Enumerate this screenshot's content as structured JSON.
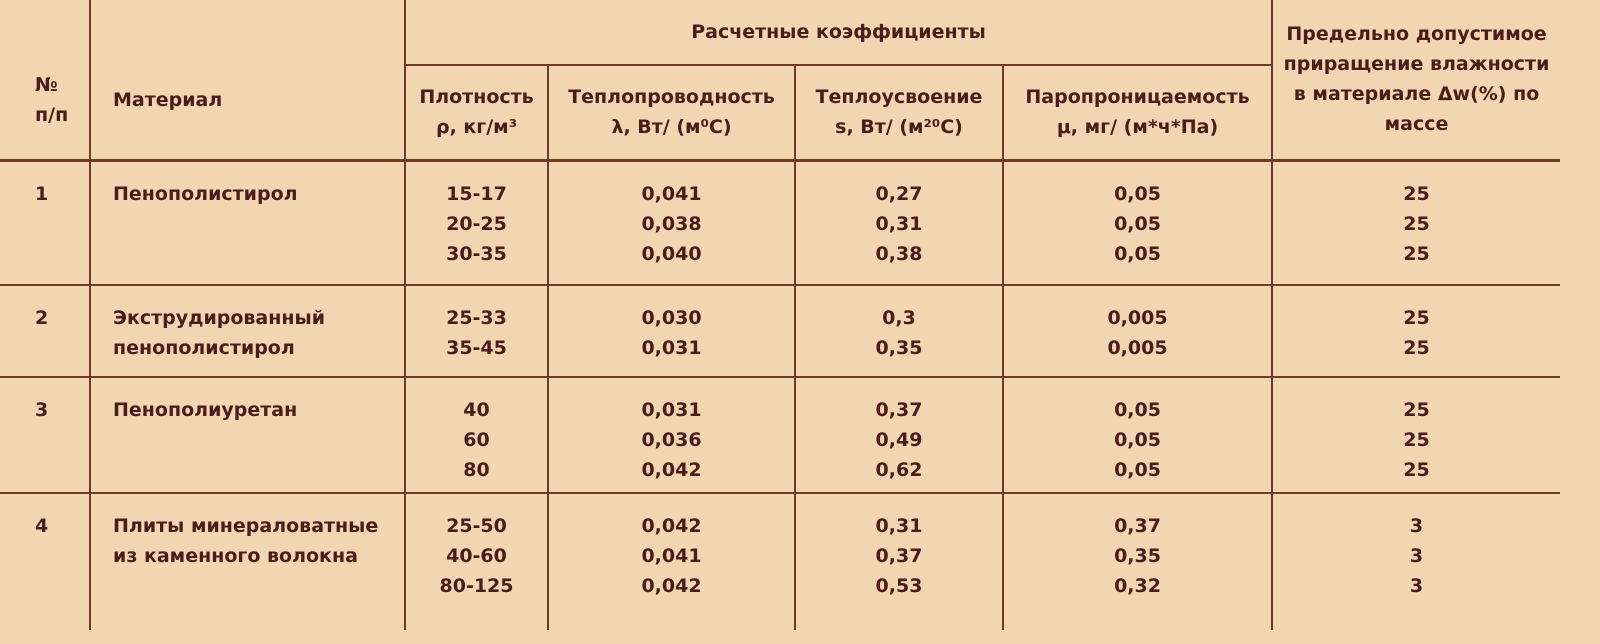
{
  "header": {
    "number": [
      "№",
      "п/п"
    ],
    "material": [
      "Материал"
    ],
    "group": [
      "Расчетные коэффициенты"
    ],
    "columns": [
      [
        "Плотность",
        "ρ, кг/м³"
      ],
      [
        "Теплопроводность",
        "λ, Вт/ (м⁰С)"
      ],
      [
        "Теплоусвоение",
        "s, Вт/ (м²⁰С)"
      ],
      [
        "Паропроницаемость",
        "μ, мг/ (м*ч*Па)"
      ]
    ],
    "limit": [
      "Предельно допустимое",
      "приращение влажности",
      "в материале Δw(%) по",
      "массе"
    ]
  },
  "rows": [
    {
      "number": "1",
      "material": [
        "Пенополистирол"
      ],
      "values": [
        [
          "15-17",
          "20-25",
          "30-35"
        ],
        [
          "0,041",
          "0,038",
          "0,040"
        ],
        [
          "0,27",
          "0,31",
          "0,38"
        ],
        [
          "0,05",
          "0,05",
          "0,05"
        ],
        [
          "25",
          "25",
          "25"
        ]
      ]
    },
    {
      "number": "2",
      "material": [
        "Экструдированный",
        "пенополистирол"
      ],
      "values": [
        [
          "25-33",
          "35-45"
        ],
        [
          "0,030",
          "0,031"
        ],
        [
          "0,3",
          "0,35"
        ],
        [
          "0,005",
          "0,005"
        ],
        [
          "25",
          "25"
        ]
      ]
    },
    {
      "number": "3",
      "material": [
        "Пенополиуретан"
      ],
      "values": [
        [
          "40",
          "60",
          "80"
        ],
        [
          "0,031",
          "0,036",
          "0,042"
        ],
        [
          "0,37",
          "0,49",
          "0,62"
        ],
        [
          "0,05",
          "0,05",
          "0,05"
        ],
        [
          "25",
          "25",
          "25"
        ]
      ]
    },
    {
      "number": "4",
      "material": [
        "Плиты минераловатные",
        "из каменного волокна"
      ],
      "values": [
        [
          "25-50",
          "40-60",
          "80-125"
        ],
        [
          "0,042",
          "0,041",
          "0,042"
        ],
        [
          "0,31",
          "0,37",
          "0,53"
        ],
        [
          "0,37",
          "0,35",
          "0,32"
        ],
        [
          "3",
          "3",
          "3"
        ]
      ]
    }
  ]
}
